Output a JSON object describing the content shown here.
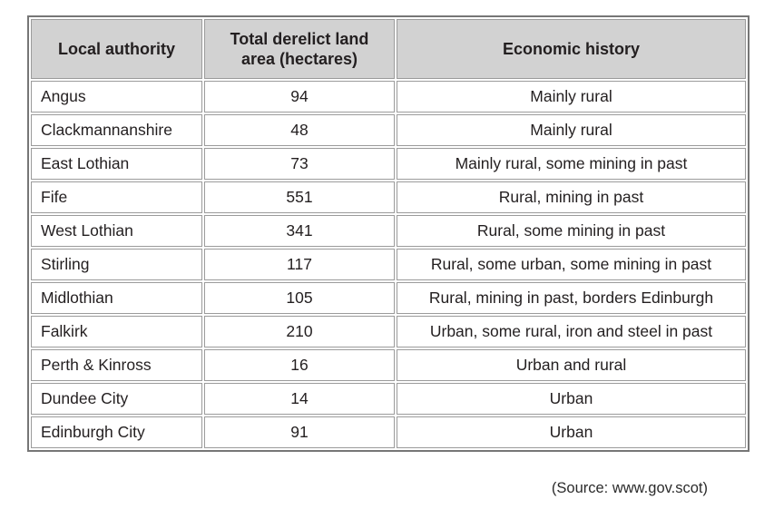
{
  "page": {
    "source_note": "(Source: www.gov.scot)"
  },
  "table": {
    "columns": [
      "Local authority",
      "Total derelict land area (hectares)",
      "Economic history"
    ],
    "rows": [
      {
        "authority": "Angus",
        "area": "94",
        "history": "Mainly rural"
      },
      {
        "authority": "Clackmannanshire",
        "area": "48",
        "history": "Mainly rural"
      },
      {
        "authority": "East Lothian",
        "area": "73",
        "history": "Mainly rural, some mining in past"
      },
      {
        "authority": "Fife",
        "area": "551",
        "history": "Rural, mining in past"
      },
      {
        "authority": "West Lothian",
        "area": "341",
        "history": "Rural, some mining in past"
      },
      {
        "authority": "Stirling",
        "area": "117",
        "history": "Rural, some urban, some mining in past"
      },
      {
        "authority": "Midlothian",
        "area": "105",
        "history": "Rural, mining in past, borders Edinburgh"
      },
      {
        "authority": "Falkirk",
        "area": "210",
        "history": "Urban, some rural, iron and steel in past"
      },
      {
        "authority": "Perth & Kinross",
        "area": "16",
        "history": "Urban and rural"
      },
      {
        "authority": "Dundee City",
        "area": "14",
        "history": "Urban"
      },
      {
        "authority": "Edinburgh City",
        "area": "91",
        "history": "Urban"
      }
    ]
  },
  "colors": {
    "header_fill": "#d2d2d2",
    "cell_border": "#9b9b9b",
    "outer_border": "#767676",
    "text": "#231f20"
  }
}
